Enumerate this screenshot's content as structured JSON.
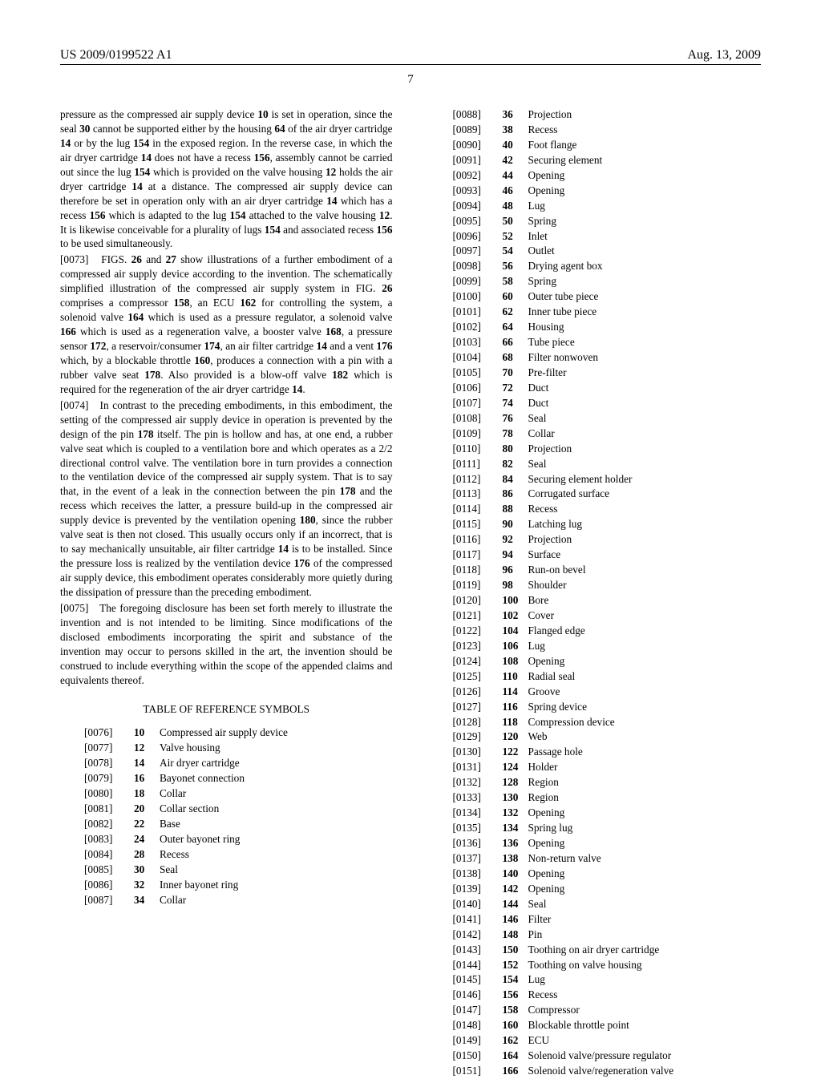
{
  "header": {
    "left": "US 2009/0199522 A1",
    "right": "Aug. 13, 2009"
  },
  "page_number": "7",
  "left_column": {
    "paragraphs": [
      {
        "num": "",
        "text": "pressure as the compressed air supply device <b>10</b> is set in operation, since the seal <b>30</b> cannot be supported either by the housing <b>64</b> of the air dryer cartridge <b>14</b> or by the lug <b>154</b> in the exposed region. In the reverse case, in which the air dryer cartridge <b>14</b> does not have a recess <b>156</b>, assembly cannot be carried out since the lug <b>154</b> which is provided on the valve housing <b>12</b> holds the air dryer cartridge <b>14</b> at a distance. The compressed air supply device can therefore be set in operation only with an air dryer cartridge <b>14</b> which has a recess <b>156</b> which is adapted to the lug <b>154</b> attached to the valve housing <b>12</b>. It is likewise conceivable for a plurality of lugs <b>154</b> and associated recess <b>156</b> to be used simultaneously."
      },
      {
        "num": "[0073]",
        "text": "FIGS. <b>26</b> and <b>27</b> show illustrations of a further embodiment of a compressed air supply device according to the invention. The schematically simplified illustration of the compressed air supply system in FIG. <b>26</b> comprises a compressor <b>158</b>, an ECU <b>162</b> for controlling the system, a solenoid valve <b>164</b> which is used as a pressure regulator, a solenoid valve <b>166</b> which is used as a regeneration valve, a booster valve <b>168</b>, a pressure sensor <b>172</b>, a reservoir/consumer <b>174</b>, an air filter cartridge <b>14</b> and a vent <b>176</b> which, by a blockable throttle <b>160</b>, produces a connection with a pin with a rubber valve seat <b>178</b>. Also provided is a blow-off valve <b>182</b> which is required for the regeneration of the air dryer cartridge <b>14</b>."
      },
      {
        "num": "[0074]",
        "text": "In contrast to the preceding embodiments, in this embodiment, the setting of the compressed air supply device in operation is prevented by the design of the pin <b>178</b> itself. The pin is hollow and has, at one end, a rubber valve seat which is coupled to a ventilation bore and which operates as a 2/2 directional control valve. The ventilation bore in turn provides a connection to the ventilation device of the compressed air supply system. That is to say that, in the event of a leak in the connection between the pin <b>178</b> and the recess which receives the latter, a pressure build-up in the compressed air supply device is prevented by the ventilation opening <b>180</b>, since the rubber valve seat is then not closed. This usually occurs only if an incorrect, that is to say mechanically unsuitable, air filter cartridge <b>14</b> is to be installed. Since the pressure loss is realized by the ventilation device <b>176</b> of the compressed air supply device, this embodiment operates considerably more quietly during the dissipation of pressure than the preceding embodiment."
      },
      {
        "num": "[0075]",
        "text": "The foregoing disclosure has been set forth merely to illustrate the invention and is not intended to be limiting. Since modifications of the disclosed embodiments incorporating the spirit and substance of the invention may occur to persons skilled in the art, the invention should be construed to include everything within the scope of the appended claims and equivalents thereof."
      }
    ],
    "table_title": "TABLE OF REFERENCE SYMBOLS",
    "refs": [
      {
        "n": "[0076]",
        "s": "10",
        "l": "Compressed air supply device"
      },
      {
        "n": "[0077]",
        "s": "12",
        "l": "Valve housing"
      },
      {
        "n": "[0078]",
        "s": "14",
        "l": "Air dryer cartridge"
      },
      {
        "n": "[0079]",
        "s": "16",
        "l": "Bayonet connection"
      },
      {
        "n": "[0080]",
        "s": "18",
        "l": "Collar"
      },
      {
        "n": "[0081]",
        "s": "20",
        "l": "Collar section"
      },
      {
        "n": "[0082]",
        "s": "22",
        "l": "Base"
      },
      {
        "n": "[0083]",
        "s": "24",
        "l": "Outer bayonet ring"
      },
      {
        "n": "[0084]",
        "s": "28",
        "l": "Recess"
      },
      {
        "n": "[0085]",
        "s": "30",
        "l": "Seal"
      },
      {
        "n": "[0086]",
        "s": "32",
        "l": "Inner bayonet ring"
      },
      {
        "n": "[0087]",
        "s": "34",
        "l": "Collar"
      }
    ]
  },
  "right_column": {
    "refs": [
      {
        "n": "[0088]",
        "s": "36",
        "l": "Projection"
      },
      {
        "n": "[0089]",
        "s": "38",
        "l": "Recess"
      },
      {
        "n": "[0090]",
        "s": "40",
        "l": "Foot flange"
      },
      {
        "n": "[0091]",
        "s": "42",
        "l": "Securing element"
      },
      {
        "n": "[0092]",
        "s": "44",
        "l": "Opening"
      },
      {
        "n": "[0093]",
        "s": "46",
        "l": "Opening"
      },
      {
        "n": "[0094]",
        "s": "48",
        "l": "Lug"
      },
      {
        "n": "[0095]",
        "s": "50",
        "l": "Spring"
      },
      {
        "n": "[0096]",
        "s": "52",
        "l": "Inlet"
      },
      {
        "n": "[0097]",
        "s": "54",
        "l": "Outlet"
      },
      {
        "n": "[0098]",
        "s": "56",
        "l": "Drying agent box"
      },
      {
        "n": "[0099]",
        "s": "58",
        "l": "Spring"
      },
      {
        "n": "[0100]",
        "s": "60",
        "l": "Outer tube piece"
      },
      {
        "n": "[0101]",
        "s": "62",
        "l": "Inner tube piece"
      },
      {
        "n": "[0102]",
        "s": "64",
        "l": "Housing"
      },
      {
        "n": "[0103]",
        "s": "66",
        "l": "Tube piece"
      },
      {
        "n": "[0104]",
        "s": "68",
        "l": "Filter nonwoven"
      },
      {
        "n": "[0105]",
        "s": "70",
        "l": "Pre-filter"
      },
      {
        "n": "[0106]",
        "s": "72",
        "l": "Duct"
      },
      {
        "n": "[0107]",
        "s": "74",
        "l": "Duct"
      },
      {
        "n": "[0108]",
        "s": "76",
        "l": "Seal"
      },
      {
        "n": "[0109]",
        "s": "78",
        "l": "Collar"
      },
      {
        "n": "[0110]",
        "s": "80",
        "l": "Projection"
      },
      {
        "n": "[0111]",
        "s": "82",
        "l": "Seal"
      },
      {
        "n": "[0112]",
        "s": "84",
        "l": "Securing element holder"
      },
      {
        "n": "[0113]",
        "s": "86",
        "l": "Corrugated surface"
      },
      {
        "n": "[0114]",
        "s": "88",
        "l": "Recess"
      },
      {
        "n": "[0115]",
        "s": "90",
        "l": "Latching lug"
      },
      {
        "n": "[0116]",
        "s": "92",
        "l": "Projection"
      },
      {
        "n": "[0117]",
        "s": "94",
        "l": "Surface"
      },
      {
        "n": "[0118]",
        "s": "96",
        "l": "Run-on bevel"
      },
      {
        "n": "[0119]",
        "s": "98",
        "l": "Shoulder"
      },
      {
        "n": "[0120]",
        "s": "100",
        "l": "Bore"
      },
      {
        "n": "[0121]",
        "s": "102",
        "l": "Cover"
      },
      {
        "n": "[0122]",
        "s": "104",
        "l": "Flanged edge"
      },
      {
        "n": "[0123]",
        "s": "106",
        "l": "Lug"
      },
      {
        "n": "[0124]",
        "s": "108",
        "l": "Opening"
      },
      {
        "n": "[0125]",
        "s": "110",
        "l": "Radial seal"
      },
      {
        "n": "[0126]",
        "s": "114",
        "l": "Groove"
      },
      {
        "n": "[0127]",
        "s": "116",
        "l": "Spring device"
      },
      {
        "n": "[0128]",
        "s": "118",
        "l": "Compression device"
      },
      {
        "n": "[0129]",
        "s": "120",
        "l": "Web"
      },
      {
        "n": "[0130]",
        "s": "122",
        "l": "Passage hole"
      },
      {
        "n": "[0131]",
        "s": "124",
        "l": "Holder"
      },
      {
        "n": "[0132]",
        "s": "128",
        "l": "Region"
      },
      {
        "n": "[0133]",
        "s": "130",
        "l": "Region"
      },
      {
        "n": "[0134]",
        "s": "132",
        "l": "Opening"
      },
      {
        "n": "[0135]",
        "s": "134",
        "l": "Spring lug"
      },
      {
        "n": "[0136]",
        "s": "136",
        "l": "Opening"
      },
      {
        "n": "[0137]",
        "s": "138",
        "l": "Non-return valve"
      },
      {
        "n": "[0138]",
        "s": "140",
        "l": "Opening"
      },
      {
        "n": "[0139]",
        "s": "142",
        "l": "Opening"
      },
      {
        "n": "[0140]",
        "s": "144",
        "l": "Seal"
      },
      {
        "n": "[0141]",
        "s": "146",
        "l": "Filter"
      },
      {
        "n": "[0142]",
        "s": "148",
        "l": "Pin"
      },
      {
        "n": "[0143]",
        "s": "150",
        "l": "Toothing on air dryer cartridge"
      },
      {
        "n": "[0144]",
        "s": "152",
        "l": "Toothing on valve housing"
      },
      {
        "n": "[0145]",
        "s": "154",
        "l": "Lug"
      },
      {
        "n": "[0146]",
        "s": "156",
        "l": "Recess"
      },
      {
        "n": "[0147]",
        "s": "158",
        "l": "Compressor"
      },
      {
        "n": "[0148]",
        "s": "160",
        "l": "Blockable throttle point"
      },
      {
        "n": "[0149]",
        "s": "162",
        "l": "ECU"
      },
      {
        "n": "[0150]",
        "s": "164",
        "l": "Solenoid valve/pressure regulator"
      },
      {
        "n": "[0151]",
        "s": "166",
        "l": "Solenoid valve/regeneration valve"
      }
    ]
  }
}
